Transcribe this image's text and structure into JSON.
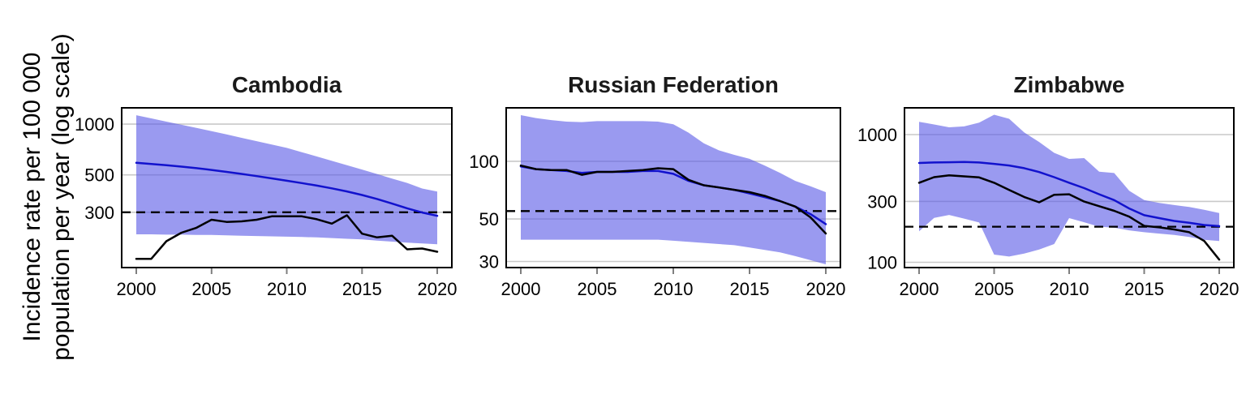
{
  "figure": {
    "y_axis_label_line1": "Incidence rate per 100 000",
    "y_axis_label_line2": "population per year (log scale)",
    "x_ticks": [
      2000,
      2005,
      2010,
      2015,
      2020
    ],
    "x_range": [
      2000,
      2020
    ]
  },
  "colors": {
    "band_fill": "#5a5ae6",
    "band_opacity": 0.61,
    "blue_line": "#1212cd",
    "black_line": "#000000",
    "dashed_line": "#000000",
    "gridline": "#c9c9c9",
    "tick_mark": "#7f7f7f",
    "border": "#000000",
    "tick_label": "#000000"
  },
  "chart_data": [
    {
      "type": "line",
      "title": "Cambodia",
      "log_scale": true,
      "grid": "horizontal",
      "legend_position": "none",
      "xlabel": "",
      "ylabel": "",
      "x": [
        2000,
        2001,
        2002,
        2003,
        2004,
        2005,
        2006,
        2007,
        2008,
        2009,
        2010,
        2011,
        2012,
        2013,
        2014,
        2015,
        2016,
        2017,
        2018,
        2019,
        2020
      ],
      "y_ticks": [
        1000,
        500,
        300
      ],
      "ylim": [
        141,
        1250
      ],
      "dashed_reference": 300,
      "series": [
        {
          "name": "blue-estimate-line",
          "color_key": "blue_line",
          "values": [
            590,
            581,
            571,
            560,
            548,
            535,
            521,
            507,
            492,
            477,
            462,
            447,
            432,
            416,
            399,
            380,
            360,
            338,
            317,
            299,
            286
          ]
        },
        {
          "name": "black-observed-line",
          "color_key": "black_line",
          "values": [
            159,
            159,
            202,
            227,
            243,
            271,
            263,
            265,
            271,
            284,
            284,
            284,
            273,
            257,
            288,
            224,
            213,
            218,
            181,
            183,
            175
          ]
        }
      ],
      "band": {
        "name": "uncertainty-band",
        "upper": [
          1130,
          1082,
          1036,
          992,
          950,
          910,
          869,
          830,
          793,
          757,
          723,
          682,
          643,
          606,
          571,
          538,
          506,
          476,
          448,
          415,
          398
        ],
        "lower": [
          222,
          222,
          221,
          221,
          220,
          220,
          219,
          218,
          217,
          216,
          215,
          214,
          213,
          211,
          209,
          207,
          204,
          201,
          198,
          196,
          194
        ]
      }
    },
    {
      "type": "line",
      "title": "Russian Federation",
      "log_scale": true,
      "grid": "horizontal",
      "legend_position": "none",
      "xlabel": "",
      "ylabel": "",
      "x": [
        2000,
        2001,
        2002,
        2003,
        2004,
        2005,
        2006,
        2007,
        2008,
        2009,
        2010,
        2011,
        2012,
        2013,
        2014,
        2015,
        2016,
        2017,
        2018,
        2019,
        2020
      ],
      "y_ticks": [
        100,
        50,
        30
      ],
      "ylim": [
        27.9,
        190
      ],
      "dashed_reference": 55,
      "series": [
        {
          "name": "blue-estimate-line",
          "color_key": "blue_line",
          "values": [
            94,
            91,
            90,
            89,
            87,
            88,
            88,
            88,
            89,
            89,
            86,
            79,
            75,
            73,
            71,
            68,
            65,
            62,
            58,
            53,
            47
          ]
        },
        {
          "name": "black-observed-line",
          "color_key": "black_line",
          "values": [
            95,
            91,
            90,
            90,
            85,
            88,
            88,
            89,
            90,
            92,
            91,
            80,
            75,
            73,
            71,
            69,
            66,
            62,
            58,
            51,
            42
          ]
        }
      ],
      "band": {
        "name": "uncertainty-band",
        "upper": [
          174,
          168,
          164,
          161,
          160,
          162,
          162,
          162,
          162,
          161,
          156,
          141,
          124,
          114,
          108,
          103,
          95,
          87,
          79,
          74,
          69
        ],
        "lower": [
          39,
          39,
          39,
          39,
          39,
          39,
          39,
          39,
          39,
          39,
          38.5,
          38,
          37.5,
          37,
          36.5,
          35.5,
          34.5,
          33.5,
          32,
          30.5,
          29
        ]
      }
    },
    {
      "type": "line",
      "title": "Zimbabwe",
      "log_scale": true,
      "grid": "horizontal",
      "legend_position": "none",
      "xlabel": "",
      "ylabel": "",
      "x": [
        2000,
        2001,
        2002,
        2003,
        2004,
        2005,
        2006,
        2007,
        2008,
        2009,
        2010,
        2011,
        2012,
        2013,
        2014,
        2015,
        2016,
        2017,
        2018,
        2019,
        2020
      ],
      "y_ticks": [
        1000,
        300,
        100
      ],
      "ylim": [
        91,
        1620
      ],
      "dashed_reference": 190,
      "series": [
        {
          "name": "blue-estimate-line",
          "color_key": "blue_line",
          "values": [
            600,
            605,
            608,
            610,
            605,
            590,
            573,
            546,
            509,
            464,
            420,
            381,
            341,
            307,
            264,
            234,
            222,
            211,
            204,
            196,
            192
          ]
        },
        {
          "name": "black-observed-line",
          "color_key": "black_line",
          "values": [
            420,
            464,
            480,
            471,
            462,
            420,
            369,
            325,
            295,
            338,
            341,
            299,
            275,
            253,
            228,
            193,
            188,
            181,
            172,
            147,
            105
          ]
        }
      ],
      "band": {
        "name": "uncertainty-band",
        "upper": [
          1260,
          1200,
          1140,
          1160,
          1240,
          1430,
          1330,
          1040,
          876,
          720,
          645,
          655,
          512,
          500,
          364,
          307,
          292,
          281,
          271,
          258,
          243
        ],
        "lower": [
          175,
          223,
          235,
          220,
          205,
          115,
          111,
          117,
          126,
          139,
          222,
          206,
          190,
          187,
          178,
          172,
          168,
          164,
          158,
          150,
          147
        ]
      }
    }
  ]
}
